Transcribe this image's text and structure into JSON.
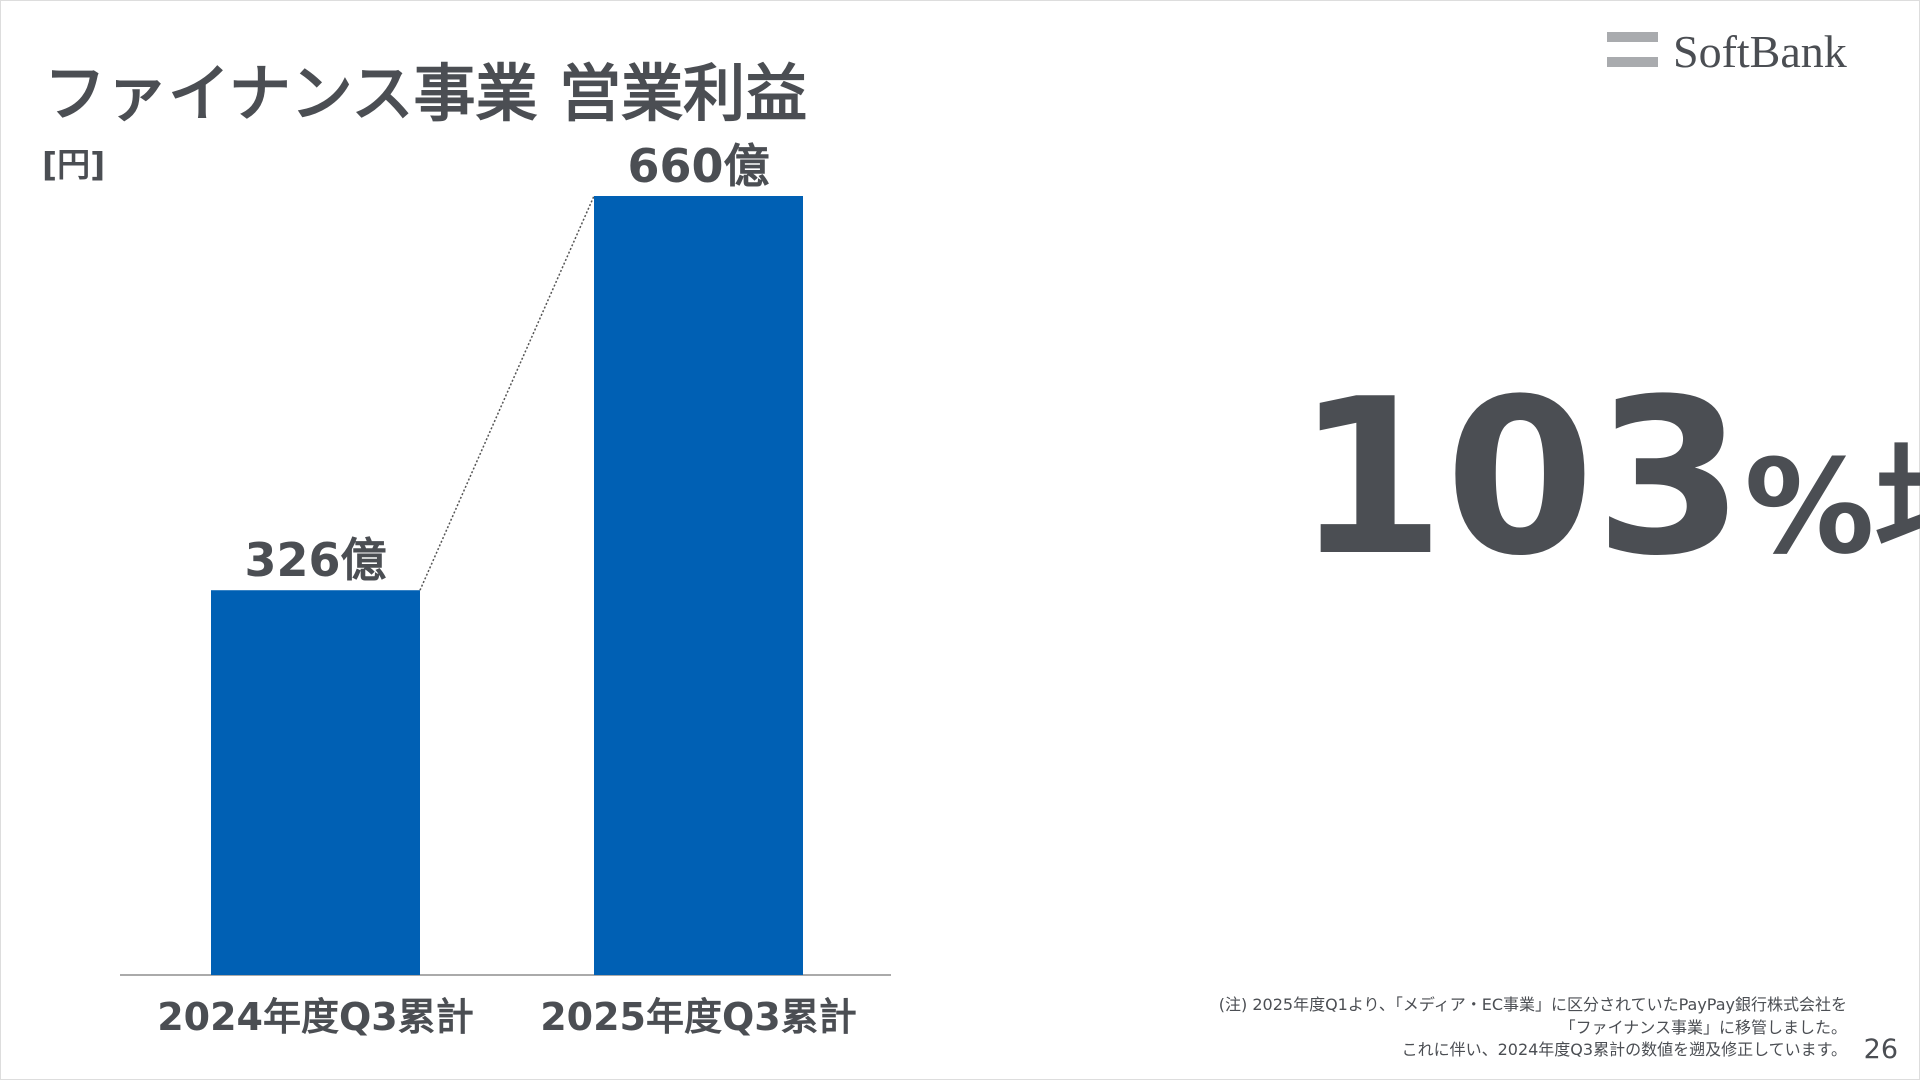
{
  "logo": "SoftBank",
  "chart_data": {
    "type": "bar",
    "title": "ファイナンス事業 営業利益",
    "unit_label": "[円]",
    "categories": [
      "2024年度Q3累計",
      "2025年度Q3累計"
    ],
    "values": [
      326,
      660
    ],
    "value_labels": [
      "326億",
      "660億"
    ],
    "color": "#0060b4",
    "headline": [
      "103",
      "%増益"
    ]
  },
  "footnote": [
    "(注) 2025年度Q1より、「メディア・EC事業」に区分されていたPayPay銀行株式会社を",
    "「ファイナンス事業」に移管しました。",
    "これに伴い、2024年度Q3累計の数値を遡及修正しています。"
  ],
  "page_number": "26"
}
